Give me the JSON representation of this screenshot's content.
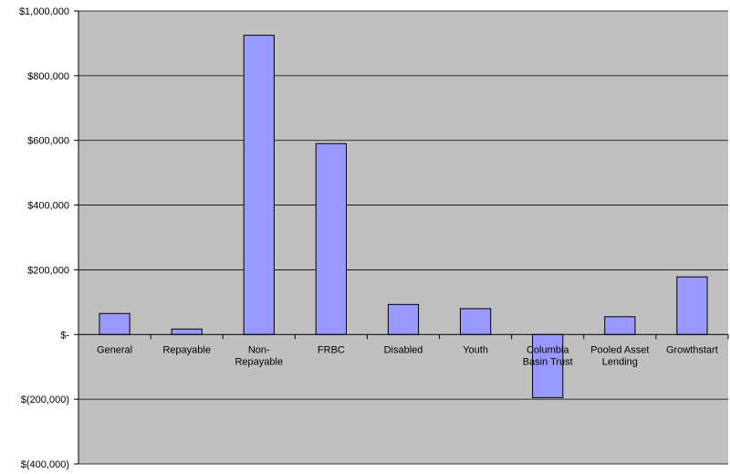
{
  "chart_data": {
    "type": "bar",
    "categories": [
      "General",
      "Repayable",
      "Non-Repayable",
      "FRBC",
      "Disabled",
      "Youth",
      "Columbia Basin Trust",
      "Pooled Asset Lending",
      "Growthstart"
    ],
    "category_label_lines": [
      [
        "General"
      ],
      [
        "Repayable"
      ],
      [
        "Non-",
        "Repayable"
      ],
      [
        "FRBC"
      ],
      [
        "Disabled"
      ],
      [
        "Youth"
      ],
      [
        "Columbia",
        "Basin Trust"
      ],
      [
        "Pooled Asset",
        "Lending"
      ],
      [
        "Growthstart"
      ]
    ],
    "values": [
      65000,
      17000,
      925000,
      590000,
      93000,
      80000,
      -195000,
      55000,
      178000
    ],
    "ylim": [
      -400000,
      1000000
    ],
    "ytick_values": [
      1000000,
      800000,
      600000,
      400000,
      200000,
      0,
      -200000,
      -400000
    ],
    "ytick_labels": [
      "$1,000,000",
      "$800,000",
      "$600,000",
      "$400,000",
      "$200,000",
      "$-",
      "$(200,000)",
      "$(400,000)"
    ],
    "grid": true,
    "legend": "none",
    "colors": {
      "plot_background": "#c0c0c0",
      "bar_fill": "#9999ff",
      "bar_stroke": "#000000",
      "gridline": "#000000"
    }
  }
}
